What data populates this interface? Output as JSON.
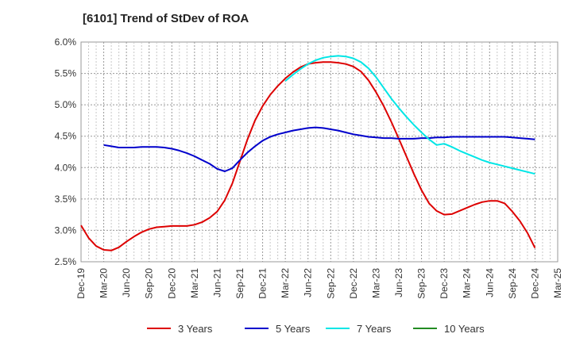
{
  "chart_data": {
    "type": "line",
    "title": "[6101]  Trend of StDev of ROA",
    "xlabel": "",
    "ylabel": "",
    "x_ticks": [
      "Dec-19",
      "Mar-20",
      "Jun-20",
      "Sep-20",
      "Dec-20",
      "Mar-21",
      "Jun-21",
      "Sep-21",
      "Dec-21",
      "Mar-22",
      "Jun-22",
      "Sep-22",
      "Dec-22",
      "Mar-23",
      "Jun-23",
      "Sep-23",
      "Dec-23",
      "Mar-24",
      "Jun-24",
      "Sep-24",
      "Dec-24",
      "Mar-25"
    ],
    "y_ticks": [
      "2.5%",
      "3.0%",
      "3.5%",
      "4.0%",
      "4.5%",
      "5.0%",
      "5.5%",
      "6.0%"
    ],
    "ylim": [
      2.5,
      6.0
    ],
    "grid": true,
    "legend_position": "bottom",
    "series": [
      {
        "name": "3 Years",
        "color": "#dd0000",
        "points": [
          [
            "Dec-19",
            3.08
          ],
          [
            "Jan-20",
            2.88
          ],
          [
            "Feb-20",
            2.75
          ],
          [
            "Mar-20",
            2.69
          ],
          [
            "Apr-20",
            2.68
          ],
          [
            "May-20",
            2.73
          ],
          [
            "Jun-20",
            2.82
          ],
          [
            "Jul-20",
            2.9
          ],
          [
            "Aug-20",
            2.97
          ],
          [
            "Sep-20",
            3.02
          ],
          [
            "Oct-20",
            3.05
          ],
          [
            "Nov-20",
            3.06
          ],
          [
            "Dec-20",
            3.07
          ],
          [
            "Jan-21",
            3.07
          ],
          [
            "Feb-21",
            3.07
          ],
          [
            "Mar-21",
            3.09
          ],
          [
            "Apr-21",
            3.13
          ],
          [
            "May-21",
            3.2
          ],
          [
            "Jun-21",
            3.3
          ],
          [
            "Jul-21",
            3.48
          ],
          [
            "Aug-21",
            3.75
          ],
          [
            "Sep-21",
            4.1
          ],
          [
            "Oct-21",
            4.45
          ],
          [
            "Nov-21",
            4.75
          ],
          [
            "Dec-21",
            4.98
          ],
          [
            "Jan-22",
            5.16
          ],
          [
            "Feb-22",
            5.3
          ],
          [
            "Mar-22",
            5.42
          ],
          [
            "Apr-22",
            5.52
          ],
          [
            "May-22",
            5.6
          ],
          [
            "Jun-22",
            5.65
          ],
          [
            "Jul-22",
            5.67
          ],
          [
            "Aug-22",
            5.68
          ],
          [
            "Sep-22",
            5.68
          ],
          [
            "Oct-22",
            5.67
          ],
          [
            "Nov-22",
            5.65
          ],
          [
            "Dec-22",
            5.61
          ],
          [
            "Jan-23",
            5.53
          ],
          [
            "Feb-23",
            5.39
          ],
          [
            "Mar-23",
            5.2
          ],
          [
            "Apr-23",
            4.98
          ],
          [
            "May-23",
            4.73
          ],
          [
            "Jun-23",
            4.46
          ],
          [
            "Jul-23",
            4.18
          ],
          [
            "Aug-23",
            3.9
          ],
          [
            "Sep-23",
            3.64
          ],
          [
            "Oct-23",
            3.43
          ],
          [
            "Nov-23",
            3.31
          ],
          [
            "Dec-23",
            3.25
          ],
          [
            "Jan-24",
            3.26
          ],
          [
            "Feb-24",
            3.31
          ],
          [
            "Mar-24",
            3.36
          ],
          [
            "Apr-24",
            3.41
          ],
          [
            "May-24",
            3.45
          ],
          [
            "Jun-24",
            3.47
          ],
          [
            "Jul-24",
            3.47
          ],
          [
            "Aug-24",
            3.43
          ],
          [
            "Sep-24",
            3.3
          ],
          [
            "Oct-24",
            3.15
          ],
          [
            "Nov-24",
            2.96
          ],
          [
            "Dec-24",
            2.72
          ]
        ]
      },
      {
        "name": "5 Years",
        "color": "#0000cc",
        "points": [
          [
            "Mar-20",
            4.36
          ],
          [
            "Apr-20",
            4.34
          ],
          [
            "May-20",
            4.32
          ],
          [
            "Jun-20",
            4.32
          ],
          [
            "Jul-20",
            4.32
          ],
          [
            "Aug-20",
            4.33
          ],
          [
            "Sep-20",
            4.33
          ],
          [
            "Oct-20",
            4.33
          ],
          [
            "Nov-20",
            4.32
          ],
          [
            "Dec-20",
            4.3
          ],
          [
            "Jan-21",
            4.27
          ],
          [
            "Feb-21",
            4.23
          ],
          [
            "Mar-21",
            4.18
          ],
          [
            "Apr-21",
            4.12
          ],
          [
            "May-21",
            4.06
          ],
          [
            "Jun-21",
            3.98
          ],
          [
            "Jul-21",
            3.94
          ],
          [
            "Aug-21",
            3.99
          ],
          [
            "Sep-21",
            4.12
          ],
          [
            "Oct-21",
            4.24
          ],
          [
            "Nov-21",
            4.34
          ],
          [
            "Dec-21",
            4.43
          ],
          [
            "Jan-22",
            4.49
          ],
          [
            "Feb-22",
            4.53
          ],
          [
            "Mar-22",
            4.56
          ],
          [
            "Apr-22",
            4.59
          ],
          [
            "May-22",
            4.61
          ],
          [
            "Jun-22",
            4.63
          ],
          [
            "Jul-22",
            4.64
          ],
          [
            "Aug-22",
            4.63
          ],
          [
            "Sep-22",
            4.61
          ],
          [
            "Oct-22",
            4.59
          ],
          [
            "Nov-22",
            4.56
          ],
          [
            "Dec-22",
            4.53
          ],
          [
            "Jan-23",
            4.51
          ],
          [
            "Feb-23",
            4.49
          ],
          [
            "Mar-23",
            4.48
          ],
          [
            "Apr-23",
            4.47
          ],
          [
            "May-23",
            4.47
          ],
          [
            "Jun-23",
            4.46
          ],
          [
            "Jul-23",
            4.46
          ],
          [
            "Aug-23",
            4.46
          ],
          [
            "Sep-23",
            4.47
          ],
          [
            "Oct-23",
            4.47
          ],
          [
            "Nov-23",
            4.48
          ],
          [
            "Dec-23",
            4.48
          ],
          [
            "Jan-24",
            4.49
          ],
          [
            "Feb-24",
            4.49
          ],
          [
            "Mar-24",
            4.49
          ],
          [
            "Apr-24",
            4.49
          ],
          [
            "May-24",
            4.49
          ],
          [
            "Jun-24",
            4.49
          ],
          [
            "Jul-24",
            4.49
          ],
          [
            "Aug-24",
            4.49
          ],
          [
            "Sep-24",
            4.48
          ],
          [
            "Oct-24",
            4.47
          ],
          [
            "Nov-24",
            4.46
          ],
          [
            "Dec-24",
            4.45
          ]
        ]
      },
      {
        "name": "7 Years",
        "color": "#00e6e6",
        "points": [
          [
            "Mar-22",
            5.38
          ],
          [
            "Apr-22",
            5.48
          ],
          [
            "May-22",
            5.57
          ],
          [
            "Jun-22",
            5.65
          ],
          [
            "Jul-22",
            5.71
          ],
          [
            "Aug-22",
            5.75
          ],
          [
            "Sep-22",
            5.77
          ],
          [
            "Oct-22",
            5.78
          ],
          [
            "Nov-22",
            5.77
          ],
          [
            "Dec-22",
            5.74
          ],
          [
            "Jan-23",
            5.68
          ],
          [
            "Feb-23",
            5.58
          ],
          [
            "Mar-23",
            5.44
          ],
          [
            "Apr-23",
            5.27
          ],
          [
            "May-23",
            5.1
          ],
          [
            "Jun-23",
            4.95
          ],
          [
            "Jul-23",
            4.81
          ],
          [
            "Aug-23",
            4.68
          ],
          [
            "Sep-23",
            4.56
          ],
          [
            "Oct-23",
            4.45
          ],
          [
            "Nov-23",
            4.36
          ],
          [
            "Dec-23",
            4.38
          ],
          [
            "Jan-24",
            4.33
          ],
          [
            "Feb-24",
            4.27
          ],
          [
            "Mar-24",
            4.22
          ],
          [
            "Apr-24",
            4.17
          ],
          [
            "May-24",
            4.12
          ],
          [
            "Jun-24",
            4.08
          ],
          [
            "Jul-24",
            4.05
          ],
          [
            "Aug-24",
            4.02
          ],
          [
            "Sep-24",
            3.99
          ],
          [
            "Oct-24",
            3.96
          ],
          [
            "Nov-24",
            3.93
          ],
          [
            "Dec-24",
            3.9
          ]
        ]
      },
      {
        "name": "10 Years",
        "color": "#228b22",
        "points": []
      }
    ]
  }
}
